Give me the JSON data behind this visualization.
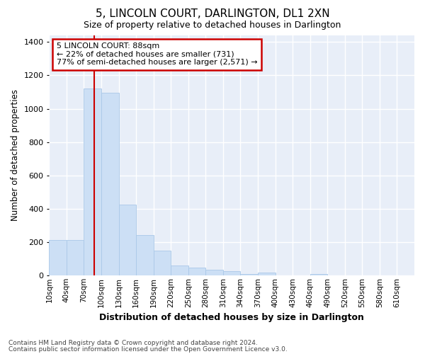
{
  "title": "5, LINCOLN COURT, DARLINGTON, DL1 2XN",
  "subtitle": "Size of property relative to detached houses in Darlington",
  "xlabel": "Distribution of detached houses by size in Darlington",
  "ylabel": "Number of detached properties",
  "bar_color": "#ccdff5",
  "bar_edge_color": "#aac8e8",
  "annotation_text": "5 LINCOLN COURT: 88sqm\n← 22% of detached houses are smaller (731)\n77% of semi-detached houses are larger (2,571) →",
  "annotation_box_color": "#ffffff",
  "annotation_box_edge": "#cc0000",
  "footer1": "Contains HM Land Registry data © Crown copyright and database right 2024.",
  "footer2": "Contains public sector information licensed under the Open Government Licence v3.0.",
  "vline_color": "#cc0000",
  "ylim_max": 1440,
  "yticks": [
    0,
    200,
    400,
    600,
    800,
    1000,
    1200,
    1400
  ],
  "background_color": "#e8eef8",
  "grid_color": "#ffffff",
  "bin_starts": [
    10,
    40,
    70,
    100,
    130,
    160,
    190,
    220,
    250,
    280,
    310,
    340,
    370,
    400,
    430,
    460,
    490,
    520,
    550,
    580,
    610
  ],
  "bar_heights": [
    210,
    210,
    1120,
    1095,
    425,
    240,
    148,
    60,
    45,
    35,
    25,
    10,
    15,
    0,
    0,
    10,
    0,
    0,
    0,
    0,
    0
  ],
  "bin_width": 30,
  "title_fontsize": 11,
  "subtitle_fontsize": 9,
  "ylabel_fontsize": 8.5,
  "xlabel_fontsize": 9,
  "tick_fontsize": 7.5,
  "footer_fontsize": 6.5,
  "ann_fontsize": 8
}
